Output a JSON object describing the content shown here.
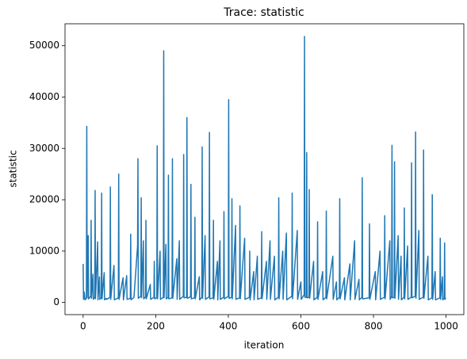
{
  "chart_data": {
    "type": "line",
    "title": "Trace: statistic",
    "x_label": "iteration",
    "y_label": "statistic",
    "color": "#1f77b4",
    "xlim": [
      -49.95,
      1048.95
    ],
    "ylim": [
      -2375,
      54275
    ],
    "xticks": [
      0,
      200,
      400,
      600,
      800,
      1000
    ],
    "yticks": [
      0,
      10000,
      20000,
      30000,
      40000,
      50000
    ],
    "x": [
      0,
      1,
      3,
      5,
      9,
      10,
      11,
      14,
      15,
      21,
      22,
      23,
      27,
      28,
      32,
      33,
      34,
      40,
      41,
      45,
      46,
      50,
      51,
      52,
      58,
      59,
      64,
      65,
      74,
      75,
      76,
      85,
      86,
      97,
      98,
      99,
      110,
      111,
      120,
      121,
      130,
      131,
      132,
      140,
      150,
      151,
      152,
      159,
      160,
      161,
      166,
      167,
      172,
      173,
      174,
      185,
      186,
      195,
      196,
      197,
      203,
      204,
      205,
      212,
      213,
      221,
      222,
      223,
      228,
      229,
      234,
      235,
      236,
      245,
      246,
      247,
      258,
      259,
      265,
      266,
      276,
      277,
      278,
      285,
      286,
      287,
      296,
      297,
      298,
      307,
      308,
      309,
      320,
      321,
      327,
      328,
      329,
      336,
      337,
      347,
      348,
      349,
      358,
      359,
      360,
      370,
      371,
      377,
      378,
      387,
      388,
      389,
      400,
      401,
      402,
      409,
      410,
      411,
      420,
      421,
      431,
      432,
      433,
      445,
      446,
      458,
      459,
      460,
      470,
      471,
      480,
      481,
      491,
      492,
      493,
      505,
      506,
      515,
      516,
      527,
      528,
      538,
      539,
      540,
      550,
      551,
      560,
      561,
      575,
      576,
      577,
      590,
      591,
      600,
      601,
      609,
      610,
      611,
      615,
      616,
      617,
      622,
      623,
      624,
      635,
      636,
      645,
      646,
      647,
      660,
      661,
      669,
      670,
      671,
      688,
      689,
      698,
      699,
      706,
      707,
      708,
      720,
      721,
      735,
      736,
      748,
      749,
      760,
      761,
      768,
      769,
      770,
      788,
      789,
      790,
      805,
      806,
      818,
      819,
      830,
      831,
      832,
      845,
      846,
      850,
      851,
      852,
      857,
      858,
      859,
      868,
      869,
      876,
      877,
      884,
      885,
      886,
      894,
      895,
      904,
      905,
      906,
      915,
      916,
      917,
      925,
      926,
      937,
      938,
      939,
      950,
      951,
      961,
      962,
      963,
      970,
      971,
      983,
      984,
      985,
      990,
      991,
      995,
      996,
      997,
      999
    ],
    "values": [
      7500,
      600,
      2000,
      500,
      800,
      34300,
      900,
      13000,
      700,
      1200,
      16000,
      800,
      5500,
      600,
      1000,
      21800,
      700,
      11800,
      500,
      5000,
      600,
      900,
      21300,
      700,
      5800,
      500,
      800,
      600,
      1000,
      22500,
      600,
      7200,
      500,
      900,
      25000,
      600,
      4800,
      500,
      5200,
      600,
      800,
      13300,
      500,
      1000,
      11000,
      28000,
      800,
      1200,
      20400,
      900,
      12000,
      700,
      1100,
      16000,
      700,
      3500,
      600,
      1000,
      8000,
      700,
      900,
      30500,
      700,
      10000,
      600,
      1000,
      49000,
      900,
      11300,
      700,
      1000,
      24800,
      700,
      900,
      28000,
      800,
      8500,
      600,
      12000,
      600,
      1200,
      28800,
      900,
      1000,
      36000,
      800,
      1100,
      23000,
      700,
      900,
      16600,
      700,
      5000,
      500,
      1000,
      30300,
      800,
      13000,
      600,
      1100,
      33100,
      700,
      900,
      16000,
      600,
      8000,
      500,
      12000,
      600,
      1000,
      17700,
      700,
      1200,
      39500,
      800,
      1000,
      20200,
      700,
      15000,
      600,
      900,
      18800,
      700,
      12500,
      600,
      1000,
      10000,
      500,
      6000,
      500,
      9000,
      600,
      900,
      13800,
      700,
      8000,
      600,
      12000,
      600,
      9000,
      500,
      1000,
      20400,
      700,
      10000,
      600,
      13500,
      500,
      1200,
      21300,
      700,
      14000,
      600,
      4000,
      600,
      1500,
      51800,
      1000,
      1000,
      29200,
      900,
      1000,
      22000,
      800,
      8000,
      500,
      1000,
      15700,
      600,
      6000,
      500,
      1000,
      17800,
      700,
      9000,
      600,
      4000,
      500,
      1000,
      20200,
      700,
      4800,
      500,
      7500,
      500,
      12000,
      600,
      4500,
      500,
      1000,
      24300,
      700,
      900,
      15300,
      600,
      6000,
      500,
      10000,
      600,
      1000,
      16900,
      700,
      12000,
      600,
      1200,
      30600,
      900,
      1000,
      27400,
      800,
      13000,
      600,
      9000,
      500,
      1000,
      18400,
      700,
      11000,
      600,
      1000,
      27200,
      900,
      1200,
      33200,
      800,
      14000,
      600,
      1000,
      29700,
      800,
      9000,
      500,
      900,
      21000,
      600,
      6000,
      500,
      900,
      12500,
      600,
      5000,
      500,
      800,
      11600,
      600,
      900
    ]
  }
}
